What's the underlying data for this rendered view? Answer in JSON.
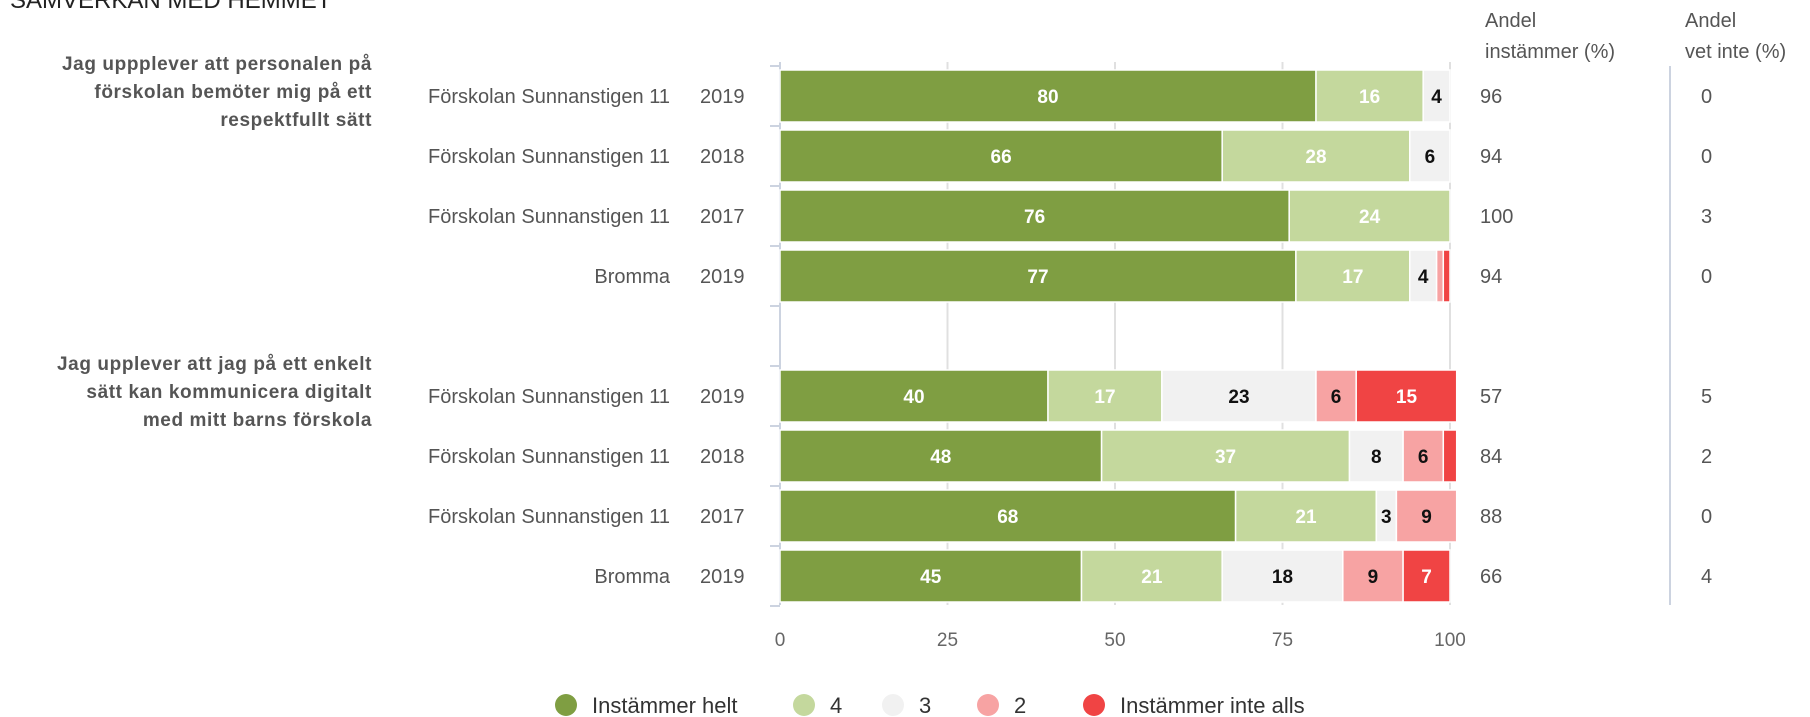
{
  "chart_data": {
    "type": "bar",
    "orientation": "horizontal",
    "stacked": true,
    "title": "SAMVERKAN MED HEMMET",
    "xlim": [
      0,
      100
    ],
    "x_ticks": [
      0,
      25,
      50,
      75,
      100
    ],
    "grid": true,
    "legend_position": "bottom",
    "column_headers": {
      "agree": [
        "Andel",
        "instämmer (%)"
      ],
      "dont_know": [
        "Andel",
        "vet inte (%)"
      ]
    },
    "series": [
      {
        "name": "Instämmer helt",
        "color": "#7f9e42",
        "label_color": "#ffffff"
      },
      {
        "name": "4",
        "color": "#c4d89d",
        "label_color": "#ffffff"
      },
      {
        "name": "3",
        "color": "#f1f1f1",
        "label_color": "#111111"
      },
      {
        "name": "2",
        "color": "#f7a3a3",
        "label_color": "#111111"
      },
      {
        "name": "Instämmer inte alls",
        "color": "#f04444",
        "label_color": "#ffffff"
      }
    ],
    "questions": [
      {
        "label": [
          "Jag uppplever att personalen på",
          "förskolan bemöter mig på ett",
          "respektfullt sätt"
        ],
        "rows": [
          {
            "unit": "Förskolan Sunnanstigen 11",
            "year": "2019",
            "values": [
              80,
              16,
              4,
              0,
              0
            ],
            "agree": "96",
            "dont_know": "0"
          },
          {
            "unit": "Förskolan Sunnanstigen 11",
            "year": "2018",
            "values": [
              66,
              28,
              6,
              0,
              0
            ],
            "agree": "94",
            "dont_know": "0"
          },
          {
            "unit": "Förskolan Sunnanstigen 11",
            "year": "2017",
            "values": [
              76,
              24,
              0,
              0,
              0
            ],
            "agree": "100",
            "dont_know": "3"
          },
          {
            "unit": "Bromma",
            "year": "2019",
            "values": [
              77,
              17,
              4,
              1,
              1
            ],
            "agree": "94",
            "dont_know": "0"
          }
        ]
      },
      {
        "label": [
          "Jag upplever att jag på ett enkelt",
          "sätt kan kommunicera digitalt",
          "med mitt barns förskola"
        ],
        "rows": [
          {
            "unit": "Förskolan Sunnanstigen 11",
            "year": "2019",
            "values": [
              40,
              17,
              23,
              6,
              15
            ],
            "agree": "57",
            "dont_know": "5"
          },
          {
            "unit": "Förskolan Sunnanstigen 11",
            "year": "2018",
            "values": [
              48,
              37,
              8,
              6,
              2
            ],
            "agree": "84",
            "dont_know": "2"
          },
          {
            "unit": "Förskolan Sunnanstigen 11",
            "year": "2017",
            "values": [
              68,
              21,
              3,
              9,
              0
            ],
            "agree": "88",
            "dont_know": "0"
          },
          {
            "unit": "Bromma",
            "year": "2019",
            "values": [
              45,
              21,
              18,
              9,
              7
            ],
            "agree": "66",
            "dont_know": "4"
          }
        ]
      }
    ]
  }
}
